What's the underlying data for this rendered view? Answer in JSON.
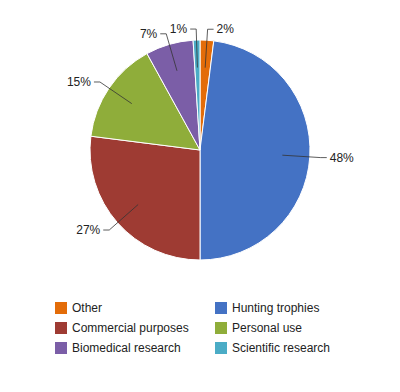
{
  "chart_data": {
    "type": "pie",
    "categories": [
      "Other",
      "Hunting trophies",
      "Commercial purposes",
      "Personal use",
      "Biomedical research",
      "Scientific research"
    ],
    "values": [
      2,
      48,
      27,
      15,
      7,
      1
    ],
    "value_labels": [
      "2%",
      "48%",
      "27%",
      "15%",
      "7%",
      "1%"
    ],
    "colors": [
      "#E36C09",
      "#4472C4",
      "#9E3B33",
      "#8FAD3A",
      "#7B5EA7",
      "#4BACC6"
    ],
    "data_labels": true,
    "legend": "bottom"
  }
}
